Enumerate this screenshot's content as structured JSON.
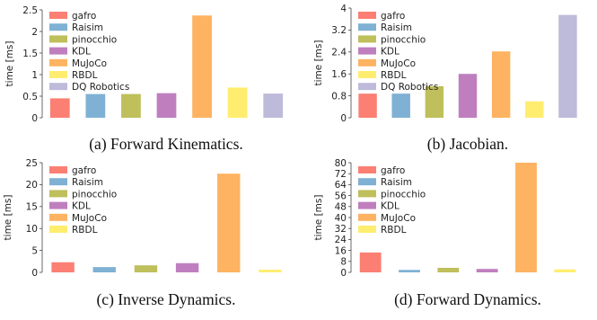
{
  "figure": {
    "colors": {
      "gafro": "#fb7f73",
      "Raisim": "#7fb1d4",
      "pinocchio": "#bfbf5c",
      "KDL": "#bf7fbf",
      "MuJoCo": "#fdb361",
      "RBDL": "#ffed6f",
      "DQ Robotics": "#bebada"
    }
  },
  "chart_data": [
    {
      "type": "bar",
      "caption": "(a) Forward Kinematics.",
      "ylabel": "time [ms]",
      "categories": [
        "gafro",
        "Raisim",
        "pinocchio",
        "KDL",
        "MuJoCo",
        "RBDL",
        "DQ Robotics"
      ],
      "values": [
        0.45,
        0.55,
        0.55,
        0.57,
        2.37,
        0.7,
        0.56
      ],
      "ylim": [
        0,
        2.5
      ],
      "yticks": [
        "0",
        "0.5",
        "1",
        "1.5",
        "2",
        "2.5"
      ],
      "legend": [
        "gafro",
        "Raisim",
        "pinocchio",
        "KDL",
        "MuJoCo",
        "RBDL",
        "DQ Robotics"
      ]
    },
    {
      "type": "bar",
      "caption": "(b) Jacobian.",
      "ylabel": "time [ms]",
      "categories": [
        "gafro",
        "Raisim",
        "pinocchio",
        "KDL",
        "MuJoCo",
        "RBDL",
        "DQ Robotics"
      ],
      "values": [
        0.88,
        0.88,
        1.15,
        1.6,
        2.42,
        0.6,
        3.75
      ],
      "ylim": [
        0,
        4
      ],
      "yticks": [
        "0",
        "0.8",
        "1.6",
        "2.4",
        "3.2",
        "4"
      ],
      "legend": [
        "gafro",
        "Raisim",
        "pinocchio",
        "KDL",
        "MuJoCo",
        "RBDL",
        "DQ Robotics"
      ]
    },
    {
      "type": "bar",
      "caption": "(c) Inverse Dynamics.",
      "ylabel": "time [ms]",
      "categories": [
        "gafro",
        "Raisim",
        "pinocchio",
        "KDL",
        "MuJoCo",
        "RBDL"
      ],
      "values": [
        2.3,
        1.2,
        1.6,
        2.1,
        22.5,
        0.6
      ],
      "ylim": [
        0,
        25
      ],
      "yticks": [
        "0",
        "5",
        "10",
        "15",
        "20",
        "25"
      ],
      "legend": [
        "gafro",
        "Raisim",
        "pinocchio",
        "KDL",
        "MuJoCo",
        "RBDL"
      ]
    },
    {
      "type": "bar",
      "caption": "(d) Forward Dynamics.",
      "ylabel": "time [ms]",
      "categories": [
        "gafro",
        "Raisim",
        "pinocchio",
        "KDL",
        "MuJoCo",
        "RBDL"
      ],
      "values": [
        14.5,
        1.8,
        3.3,
        2.5,
        80,
        2.2
      ],
      "ylim": [
        0,
        80
      ],
      "yticks": [
        "0",
        "8",
        "16",
        "24",
        "32",
        "40",
        "48",
        "56",
        "64",
        "72",
        "80"
      ],
      "legend": [
        "gafro",
        "Raisim",
        "pinocchio",
        "KDL",
        "MuJoCo",
        "RBDL"
      ]
    }
  ]
}
